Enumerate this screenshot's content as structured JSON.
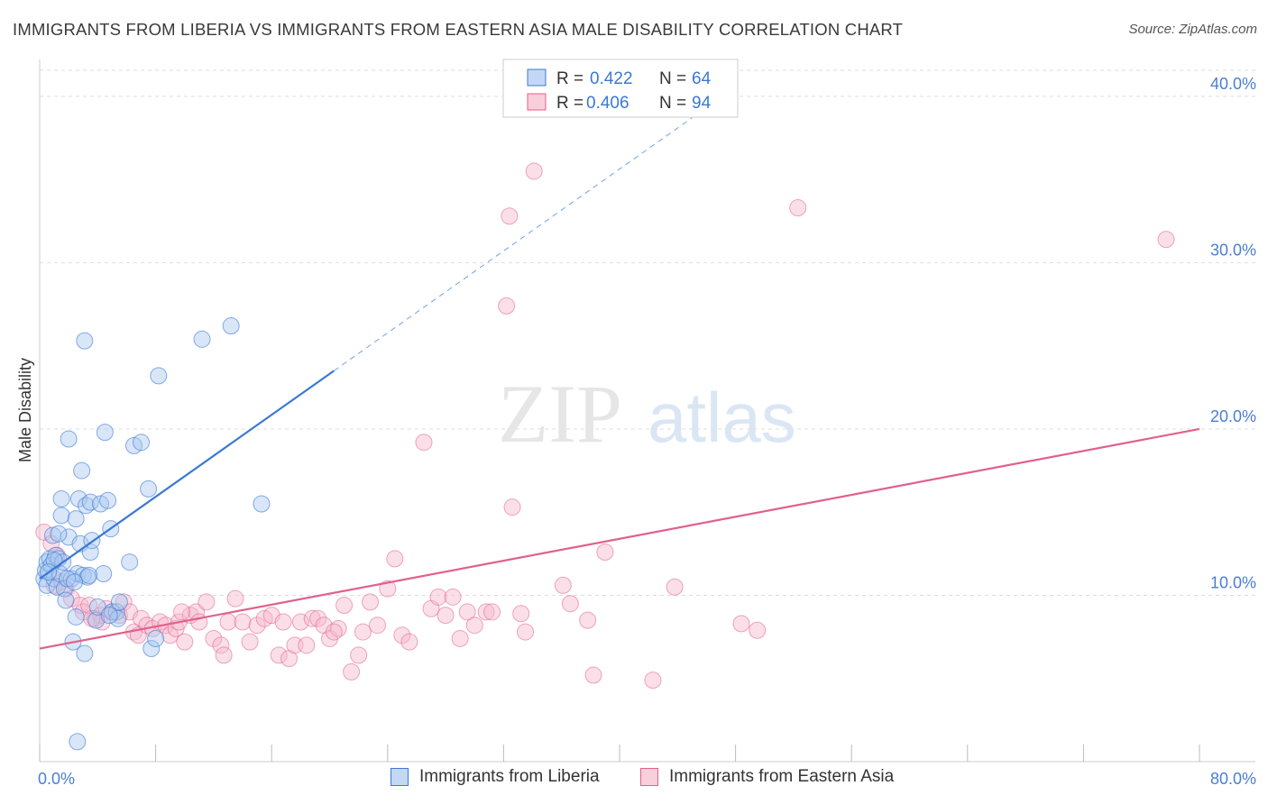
{
  "title": "IMMIGRANTS FROM LIBERIA VS IMMIGRANTS FROM EASTERN ASIA MALE DISABILITY CORRELATION CHART",
  "source": "Source: ZipAtlas.com",
  "watermark": {
    "zip": "ZIP",
    "atlas": "atlas"
  },
  "colors": {
    "blue": "#3a78d6",
    "blue_fill": "#a9c8f0",
    "pink": "#e0608e",
    "pink_fill": "#f6b9cc",
    "grid": "#dddddd",
    "axis_label": "#4a7fd0"
  },
  "legend_top": {
    "r_label": "R =",
    "n_label": "N =",
    "rows": [
      {
        "r": "0.422",
        "n": "64",
        "color": "blue"
      },
      {
        "r": "0.406",
        "n": "94",
        "color": "pink"
      }
    ]
  },
  "bottom_legend": [
    {
      "label": "Immigrants from Liberia",
      "color": "blue"
    },
    {
      "label": "Immigrants from Eastern Asia",
      "color": "pink"
    }
  ],
  "chart_data": {
    "type": "scatter",
    "title": "IMMIGRANTS FROM LIBERIA VS IMMIGRANTS FROM EASTERN ASIA MALE DISABILITY CORRELATION CHART",
    "xlabel": "",
    "ylabel": "Male Disability",
    "xlim": [
      0,
      80
    ],
    "ylim": [
      0,
      42
    ],
    "x_tick_labels": [
      "0.0%",
      "80.0%"
    ],
    "y_ticks": [
      10,
      20,
      30,
      40
    ],
    "y_tick_labels": [
      "10.0%",
      "20.0%",
      "30.0%",
      "40.0%"
    ],
    "grid": true,
    "legend_position": "top-center",
    "series": [
      {
        "name": "Immigrants from Liberia",
        "color": "blue",
        "r": 0.422,
        "n": 64,
        "trend": {
          "x0": 0,
          "y0": 11.0,
          "x1": 20.3,
          "y1": 23.5,
          "dashed_to_x": 45
        },
        "points": [
          [
            0.3,
            11.0
          ],
          [
            0.4,
            11.5
          ],
          [
            0.5,
            12.0
          ],
          [
            0.5,
            10.6
          ],
          [
            0.7,
            12.2
          ],
          [
            0.8,
            11.8
          ],
          [
            0.9,
            13.6
          ],
          [
            1.0,
            11.0
          ],
          [
            1.1,
            12.4
          ],
          [
            1.2,
            10.5
          ],
          [
            1.3,
            12.2
          ],
          [
            1.4,
            11.3
          ],
          [
            1.5,
            14.8
          ],
          [
            1.5,
            15.8
          ],
          [
            1.6,
            12.0
          ],
          [
            1.7,
            10.4
          ],
          [
            1.8,
            9.7
          ],
          [
            2.0,
            13.5
          ],
          [
            2.0,
            19.4
          ],
          [
            2.2,
            11.0
          ],
          [
            2.3,
            7.2
          ],
          [
            2.5,
            8.7
          ],
          [
            2.5,
            14.6
          ],
          [
            2.6,
            11.3
          ],
          [
            2.7,
            15.8
          ],
          [
            2.8,
            13.1
          ],
          [
            2.9,
            17.5
          ],
          [
            3.0,
            11.2
          ],
          [
            3.1,
            6.5
          ],
          [
            3.2,
            15.4
          ],
          [
            3.3,
            11.1
          ],
          [
            3.5,
            12.6
          ],
          [
            3.5,
            15.6
          ],
          [
            3.6,
            13.3
          ],
          [
            3.9,
            8.5
          ],
          [
            4.0,
            9.3
          ],
          [
            4.2,
            15.5
          ],
          [
            4.4,
            11.3
          ],
          [
            4.5,
            19.8
          ],
          [
            4.7,
            15.7
          ],
          [
            4.9,
            14.0
          ],
          [
            5.0,
            9.0
          ],
          [
            5.3,
            9.0
          ],
          [
            5.4,
            8.6
          ],
          [
            5.5,
            9.6
          ],
          [
            6.2,
            12.0
          ],
          [
            6.5,
            19.0
          ],
          [
            7.0,
            19.2
          ],
          [
            7.5,
            16.4
          ],
          [
            7.7,
            6.8
          ],
          [
            8.0,
            7.4
          ],
          [
            8.2,
            23.2
          ],
          [
            11.2,
            25.4
          ],
          [
            13.2,
            26.2
          ],
          [
            15.3,
            15.5
          ],
          [
            3.1,
            25.3
          ],
          [
            2.6,
            1.2
          ],
          [
            1.0,
            12.1
          ],
          [
            0.6,
            11.4
          ],
          [
            1.9,
            11.0
          ],
          [
            2.4,
            10.8
          ],
          [
            4.8,
            8.8
          ],
          [
            3.4,
            11.2
          ],
          [
            1.3,
            13.7
          ]
        ]
      },
      {
        "name": "Immigrants from Eastern Asia",
        "color": "pink",
        "r": 0.406,
        "n": 94,
        "trend": {
          "x0": 0,
          "y0": 6.8,
          "x1": 80,
          "y1": 20.0
        },
        "points": [
          [
            0.3,
            13.8
          ],
          [
            0.8,
            13.1
          ],
          [
            1.2,
            12.4
          ],
          [
            1.5,
            10.8
          ],
          [
            1.8,
            10.4
          ],
          [
            2.2,
            9.8
          ],
          [
            2.8,
            9.4
          ],
          [
            3.0,
            9.0
          ],
          [
            3.4,
            9.4
          ],
          [
            3.8,
            8.6
          ],
          [
            4.2,
            8.8
          ],
          [
            4.3,
            8.4
          ],
          [
            4.6,
            9.2
          ],
          [
            5.0,
            9.0
          ],
          [
            5.5,
            8.8
          ],
          [
            5.8,
            9.6
          ],
          [
            6.2,
            9.0
          ],
          [
            6.5,
            7.8
          ],
          [
            6.8,
            7.6
          ],
          [
            7.0,
            8.6
          ],
          [
            7.4,
            8.2
          ],
          [
            7.8,
            8.0
          ],
          [
            8.3,
            8.4
          ],
          [
            8.7,
            8.2
          ],
          [
            9.0,
            7.6
          ],
          [
            9.4,
            8.0
          ],
          [
            9.6,
            8.4
          ],
          [
            10.0,
            7.2
          ],
          [
            10.4,
            8.8
          ],
          [
            10.8,
            9.0
          ],
          [
            11.0,
            8.4
          ],
          [
            11.5,
            9.6
          ],
          [
            12.0,
            7.4
          ],
          [
            12.5,
            7.0
          ],
          [
            12.7,
            6.4
          ],
          [
            13.0,
            8.4
          ],
          [
            13.5,
            9.8
          ],
          [
            14.0,
            8.4
          ],
          [
            14.5,
            7.2
          ],
          [
            15.0,
            8.2
          ],
          [
            15.5,
            8.6
          ],
          [
            16.0,
            8.8
          ],
          [
            16.5,
            6.4
          ],
          [
            16.8,
            8.4
          ],
          [
            17.2,
            6.2
          ],
          [
            17.6,
            7.0
          ],
          [
            18.0,
            8.4
          ],
          [
            18.4,
            7.0
          ],
          [
            18.8,
            8.6
          ],
          [
            19.2,
            8.6
          ],
          [
            19.6,
            8.2
          ],
          [
            20.0,
            7.4
          ],
          [
            20.6,
            8.0
          ],
          [
            21.0,
            9.4
          ],
          [
            21.5,
            5.4
          ],
          [
            22.0,
            6.4
          ],
          [
            22.3,
            7.8
          ],
          [
            22.8,
            9.6
          ],
          [
            23.3,
            8.2
          ],
          [
            24.0,
            10.4
          ],
          [
            24.5,
            12.2
          ],
          [
            25.0,
            7.6
          ],
          [
            25.5,
            7.2
          ],
          [
            26.5,
            19.2
          ],
          [
            27.0,
            9.2
          ],
          [
            27.5,
            9.9
          ],
          [
            28.0,
            8.8
          ],
          [
            28.5,
            9.9
          ],
          [
            29.0,
            7.4
          ],
          [
            29.5,
            9.0
          ],
          [
            30.0,
            8.2
          ],
          [
            30.8,
            9.0
          ],
          [
            31.2,
            9.0
          ],
          [
            32.2,
            27.4
          ],
          [
            32.4,
            32.8
          ],
          [
            32.6,
            15.3
          ],
          [
            33.2,
            8.9
          ],
          [
            33.5,
            7.8
          ],
          [
            34.1,
            35.5
          ],
          [
            36.1,
            10.6
          ],
          [
            36.6,
            9.5
          ],
          [
            37.8,
            8.5
          ],
          [
            38.2,
            5.2
          ],
          [
            39.0,
            12.6
          ],
          [
            42.3,
            4.9
          ],
          [
            43.8,
            10.5
          ],
          [
            48.4,
            8.3
          ],
          [
            49.5,
            7.9
          ],
          [
            52.3,
            33.3
          ],
          [
            77.7,
            31.4
          ],
          [
            20.3,
            7.8
          ],
          [
            9.8,
            9.0
          ],
          [
            3.6,
            8.6
          ],
          [
            1.0,
            10.6
          ]
        ]
      }
    ]
  }
}
